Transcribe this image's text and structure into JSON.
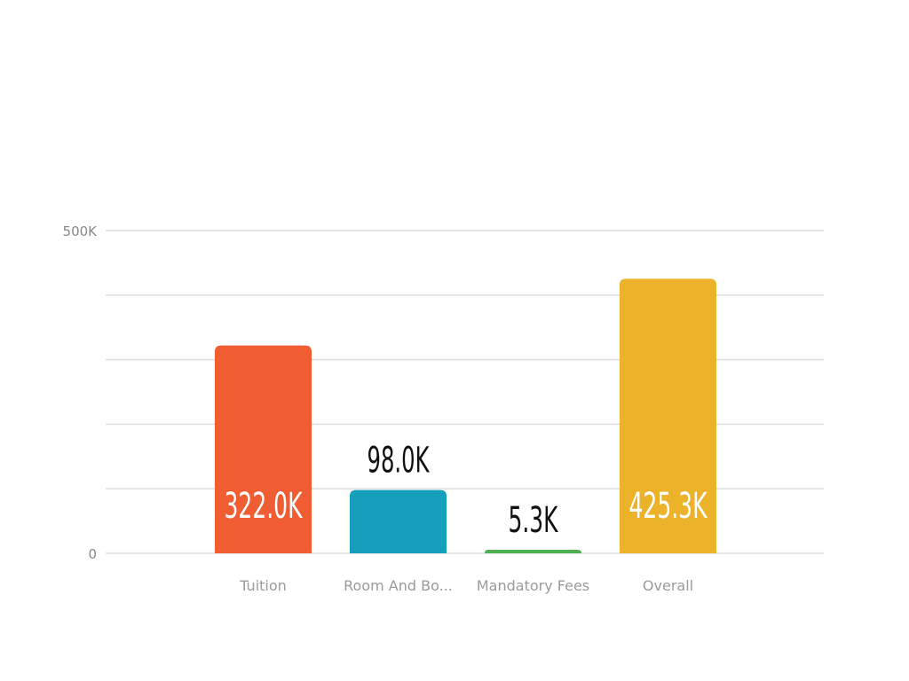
{
  "chart_data": {
    "type": "bar",
    "categories": [
      "Tuition",
      "Room And Bo...",
      "Mandatory Fees",
      "Overall"
    ],
    "values": [
      322000,
      98000,
      5300,
      425300
    ],
    "data_labels": [
      "322.0K",
      "98.0K",
      "5.3K",
      "425.3K"
    ],
    "colors": [
      "#F05D33",
      "#159FBB",
      "#4CAF50",
      "#EBB22A"
    ],
    "ylim": [
      0,
      500000
    ],
    "y_tick_labels": [
      {
        "value": 0,
        "label": "0"
      },
      {
        "value": 500000,
        "label": "500K"
      }
    ],
    "gridline_values": [
      0,
      100000,
      200000,
      300000,
      400000,
      500000
    ],
    "grid": true,
    "legend": "none",
    "title": "",
    "xlabel": "",
    "ylabel": ""
  }
}
